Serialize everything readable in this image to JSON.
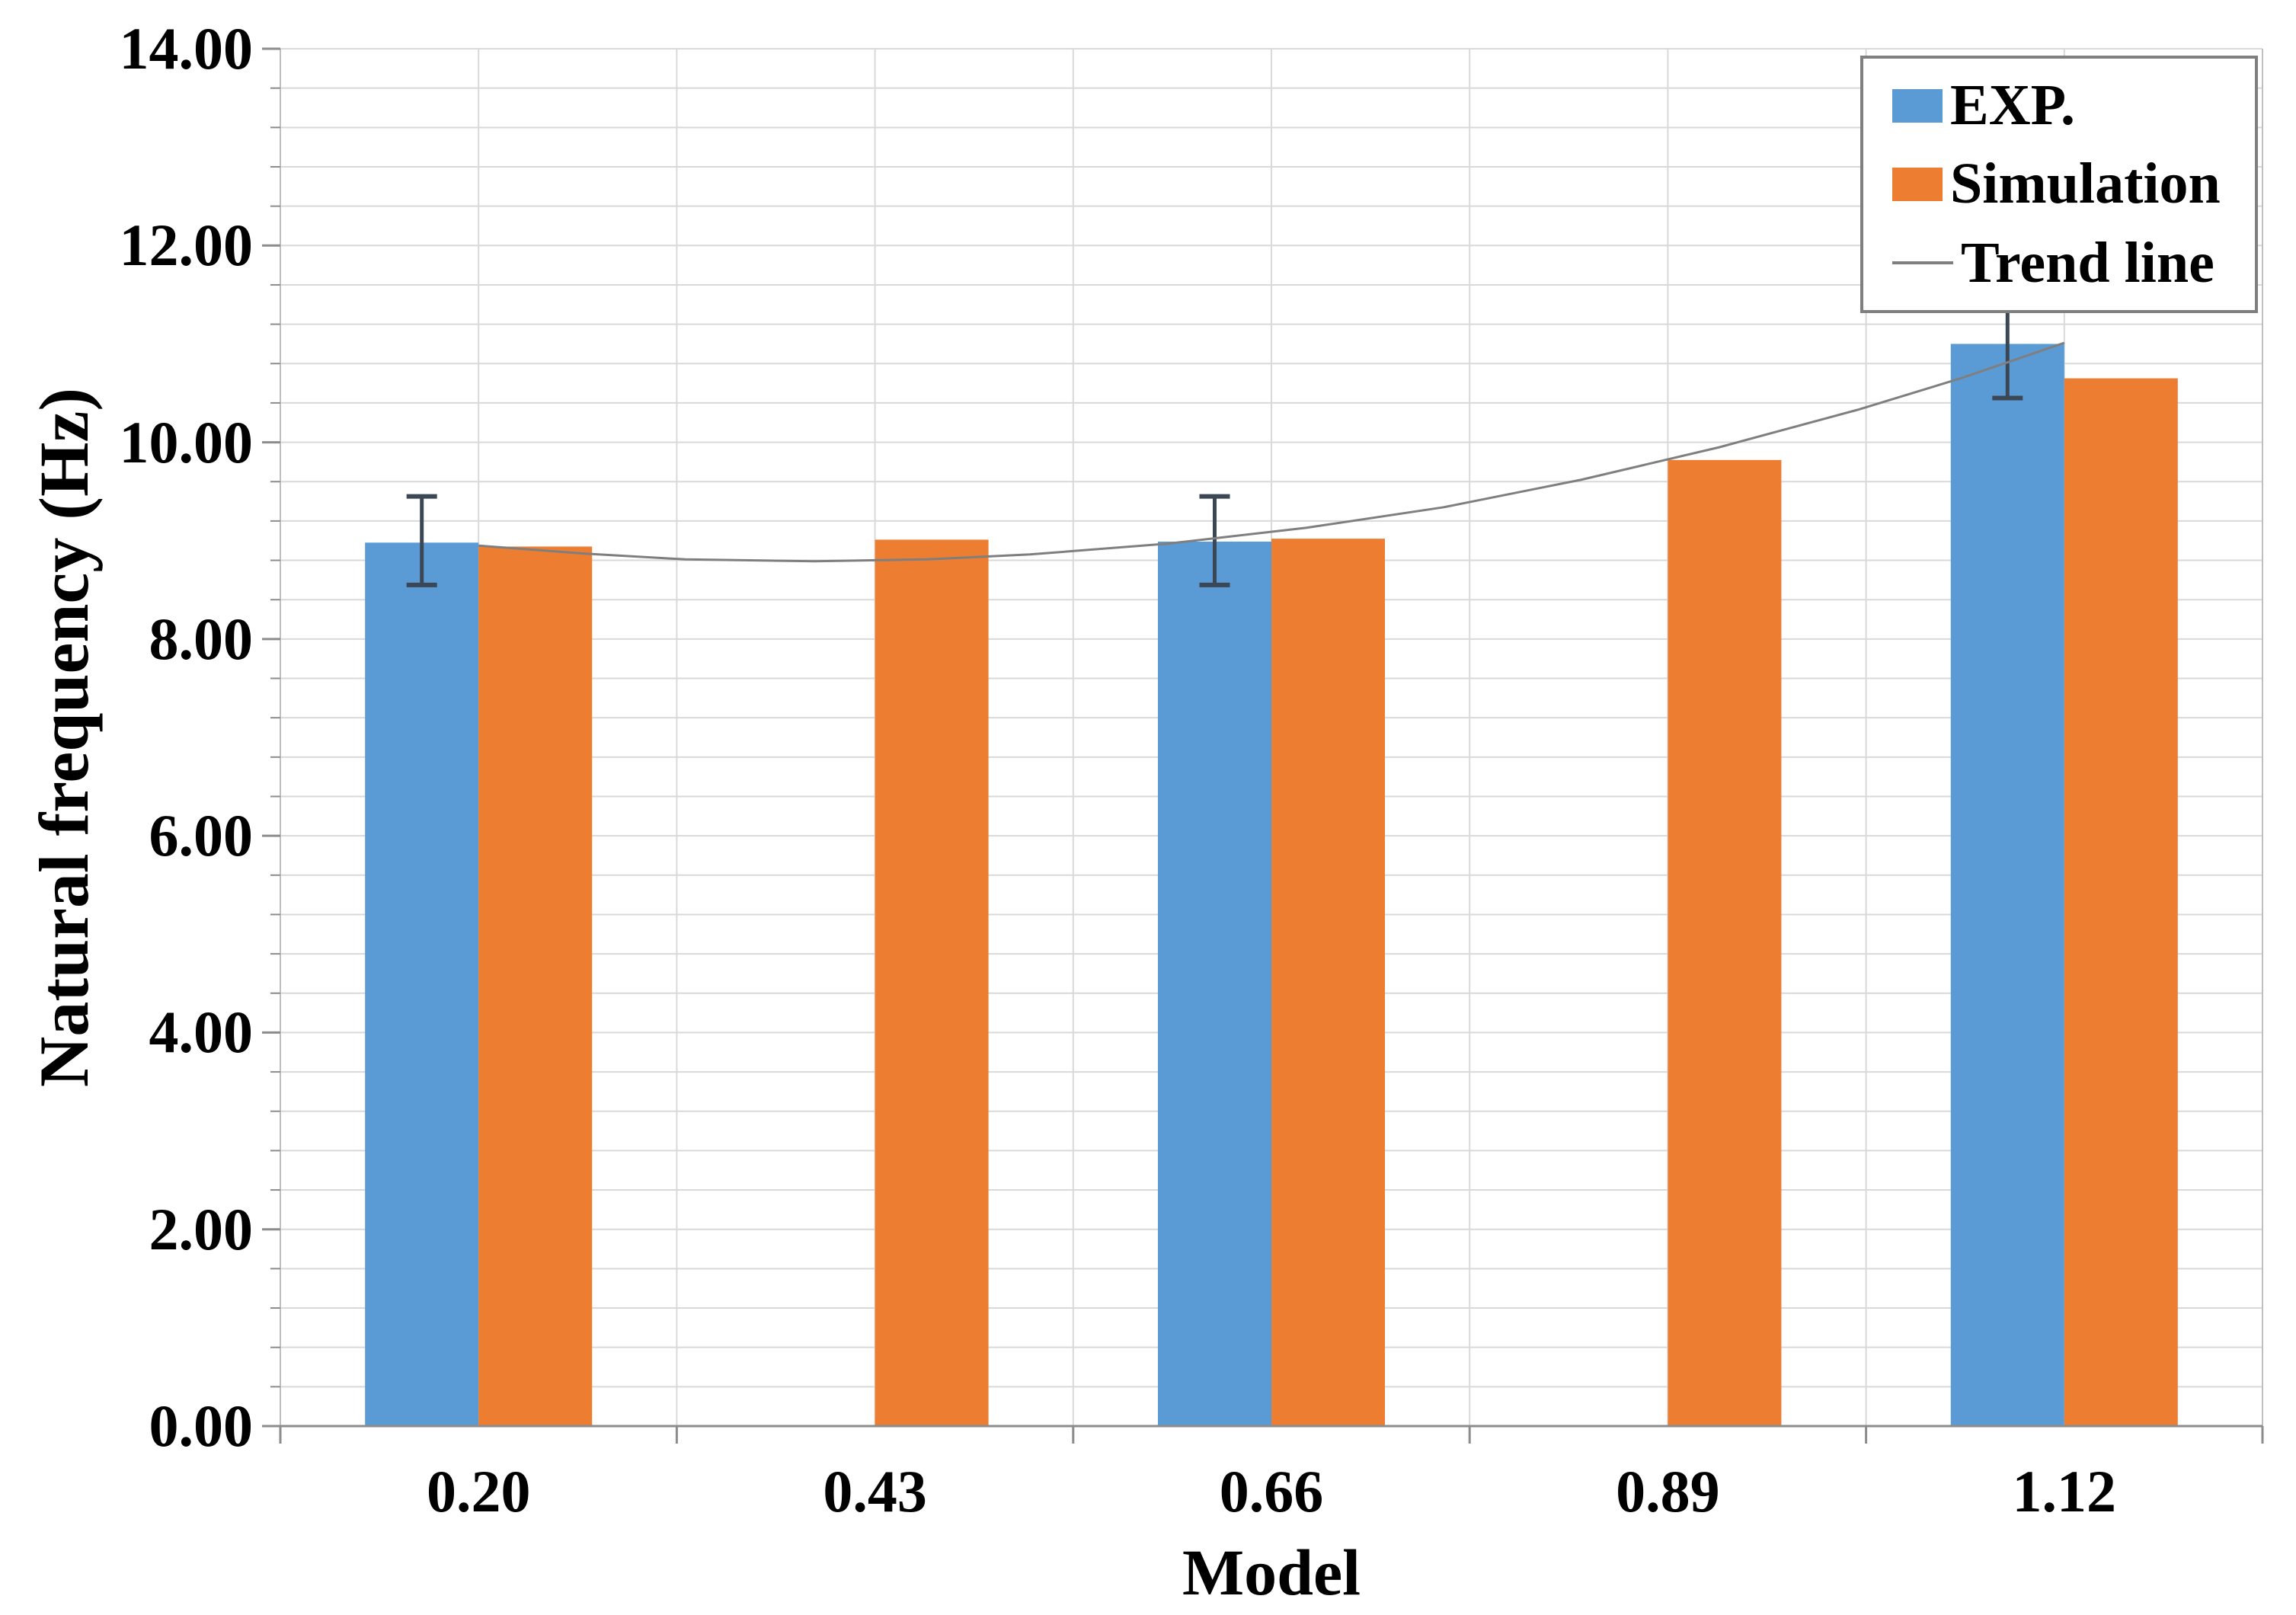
{
  "chart_data": {
    "type": "bar",
    "title": "",
    "xlabel": "Model",
    "ylabel": "Natural frequency (Hz)",
    "categories": [
      "0.20",
      "0.43",
      "0.66",
      "0.89",
      "1.12"
    ],
    "series": [
      {
        "name": "EXP.",
        "color": "#5B9BD5",
        "values": [
          8.98,
          null,
          8.99,
          null,
          11.0
        ],
        "error_bars": [
          {
            "low": 8.55,
            "high": 9.45
          },
          null,
          {
            "low": 8.55,
            "high": 9.45
          },
          null,
          {
            "low": 10.45,
            "high": 11.55
          }
        ]
      },
      {
        "name": "Simulation",
        "color": "#ED7D31",
        "values": [
          8.94,
          9.01,
          9.02,
          9.82,
          10.65
        ]
      }
    ],
    "trend": {
      "name": "Trend line",
      "color": "#7F7F7F",
      "x_domain": [
        0.2,
        1.12
      ],
      "points": [
        [
          0.2,
          8.95
        ],
        [
          0.26,
          8.87
        ],
        [
          0.32,
          8.81
        ],
        [
          0.395,
          8.79
        ],
        [
          0.46,
          8.81
        ],
        [
          0.52,
          8.86
        ],
        [
          0.6,
          8.97
        ],
        [
          0.68,
          9.13
        ],
        [
          0.76,
          9.34
        ],
        [
          0.84,
          9.62
        ],
        [
          0.92,
          9.95
        ],
        [
          1.0,
          10.33
        ],
        [
          1.06,
          10.65
        ],
        [
          1.12,
          11.01
        ]
      ]
    },
    "yaxis": {
      "min": 0,
      "max": 14,
      "major_step": 2,
      "minor_step": 0.4,
      "tick_labels": [
        "0.00",
        "2.00",
        "4.00",
        "6.00",
        "8.00",
        "10.00",
        "12.00",
        "14.00"
      ]
    },
    "legend": {
      "position": "top-right",
      "items": [
        "EXP.",
        "Simulation",
        "Trend line"
      ]
    },
    "grid": {
      "horizontal": true,
      "vertical": true
    },
    "colors": {
      "background": "#FFFFFF",
      "gridline": "#D9D9D9",
      "axis_line": "#BFBFBF",
      "baseline": "#8C8C8C",
      "tick": "#8C8C8C",
      "error_bar": "#3B4754",
      "legend_border": "#7F7F7F",
      "text": "#000000"
    }
  }
}
